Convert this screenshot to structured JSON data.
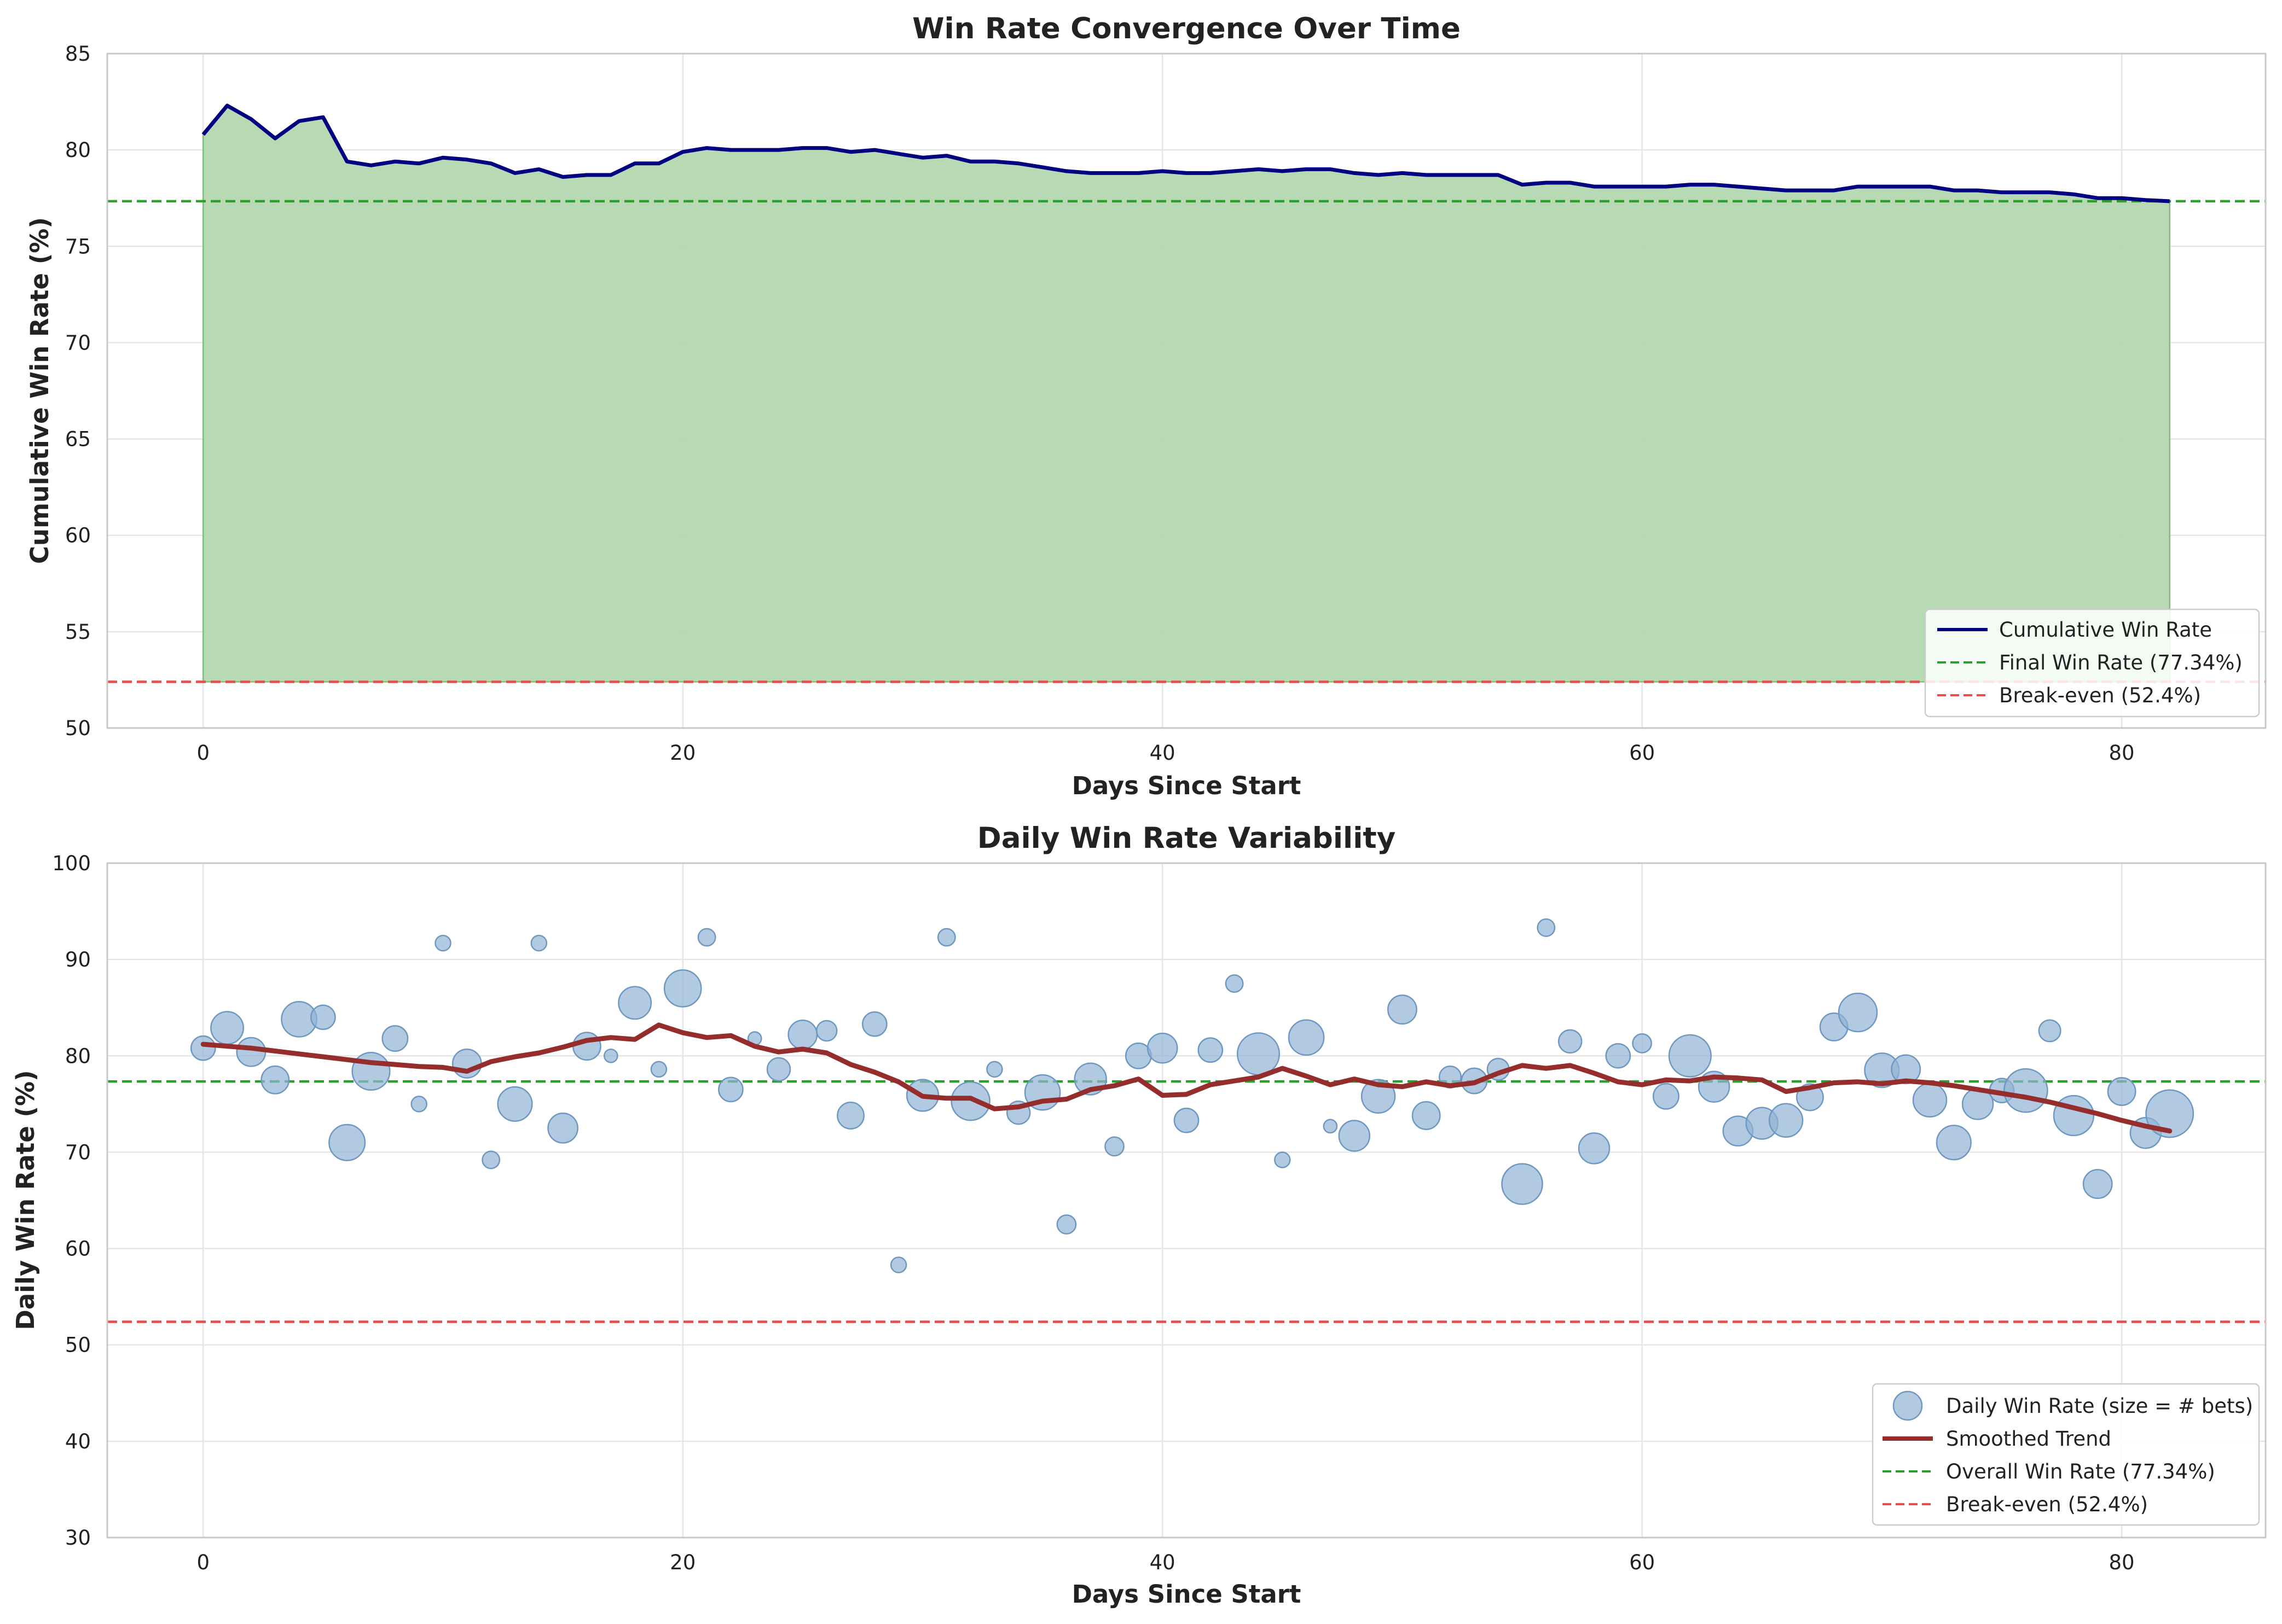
{
  "colors": {
    "cumulative_line": "#000080",
    "fill": "#b3d8b0",
    "fill_edge": "#7fbf7b",
    "final_line": "#2ca02c",
    "breakeven_line": "#e84c4c",
    "scatter": "#92b4d4",
    "scatter_edge": "#6f98c0",
    "trend": "#962d2d"
  },
  "chart_data": [
    {
      "type": "area",
      "title": "Win Rate Convergence Over Time",
      "xlabel": "Days Since Start",
      "ylabel": "Cumulative Win Rate (%)",
      "xlim": [
        -4,
        86
      ],
      "ylim": [
        50,
        85
      ],
      "xticks": [
        0,
        20,
        40,
        60,
        80
      ],
      "yticks": [
        50,
        55,
        60,
        65,
        70,
        75,
        80,
        85
      ],
      "grid": true,
      "legend_position": "lower-right",
      "legend": [
        "Cumulative Win Rate",
        "Final Win Rate (77.34%)",
        "Break-even (52.4%)"
      ],
      "series": [
        {
          "name": "Cumulative Win Rate",
          "x": [
            0,
            1,
            2,
            3,
            4,
            5,
            6,
            7,
            8,
            9,
            10,
            11,
            12,
            13,
            14,
            15,
            16,
            17,
            18,
            19,
            20,
            21,
            22,
            23,
            24,
            25,
            26,
            27,
            28,
            29,
            30,
            31,
            32,
            33,
            34,
            35,
            36,
            37,
            38,
            39,
            40,
            41,
            42,
            43,
            44,
            45,
            46,
            47,
            48,
            49,
            50,
            51,
            52,
            53,
            54,
            55,
            56,
            57,
            58,
            59,
            60,
            61,
            62,
            63,
            64,
            65,
            66,
            67,
            68,
            69,
            70,
            71,
            72,
            73,
            74,
            75,
            76,
            77,
            78,
            79,
            80,
            81,
            82
          ],
          "y": [
            80.8,
            82.3,
            81.6,
            80.6,
            81.5,
            81.7,
            79.4,
            79.2,
            79.4,
            79.3,
            79.6,
            79.5,
            79.3,
            78.8,
            79.0,
            78.6,
            78.7,
            78.7,
            79.3,
            79.3,
            79.9,
            80.1,
            80.0,
            80.0,
            80.0,
            80.1,
            80.1,
            79.9,
            80.0,
            79.8,
            79.6,
            79.7,
            79.4,
            79.4,
            79.3,
            79.1,
            78.9,
            78.8,
            78.8,
            78.8,
            78.9,
            78.8,
            78.8,
            78.9,
            79.0,
            78.9,
            79.0,
            79.0,
            78.8,
            78.7,
            78.8,
            78.7,
            78.7,
            78.7,
            78.7,
            78.2,
            78.3,
            78.3,
            78.1,
            78.1,
            78.1,
            78.1,
            78.2,
            78.2,
            78.1,
            78.0,
            77.9,
            77.9,
            77.9,
            78.1,
            78.1,
            78.1,
            78.1,
            77.9,
            77.9,
            77.8,
            77.8,
            77.8,
            77.7,
            77.5,
            77.5,
            77.4,
            77.34
          ]
        }
      ],
      "reference_lines": [
        {
          "name": "Final Win Rate (77.34%)",
          "y": 77.34
        },
        {
          "name": "Break-even (52.4%)",
          "y": 52.4
        }
      ]
    },
    {
      "type": "scatter",
      "title": "Daily Win Rate Variability",
      "xlabel": "Days Since Start",
      "ylabel": "Daily Win Rate (%)",
      "xlim": [
        -4,
        86
      ],
      "ylim": [
        30,
        100
      ],
      "xticks": [
        0,
        20,
        40,
        60,
        80
      ],
      "yticks": [
        30,
        40,
        50,
        60,
        70,
        80,
        90,
        100
      ],
      "grid": true,
      "legend_position": "lower-right",
      "legend": [
        "Daily Win Rate (size = # bets)",
        "Smoothed Trend",
        "Overall Win Rate (77.34%)",
        "Break-even (52.4%)"
      ],
      "points": [
        {
          "x": 0,
          "y": 80.8,
          "n": 10
        },
        {
          "x": 1,
          "y": 82.9,
          "n": 18
        },
        {
          "x": 2,
          "y": 80.4,
          "n": 14
        },
        {
          "x": 3,
          "y": 77.5,
          "n": 13
        },
        {
          "x": 4,
          "y": 83.8,
          "n": 21
        },
        {
          "x": 5,
          "y": 84.0,
          "n": 10
        },
        {
          "x": 6,
          "y": 71.0,
          "n": 22
        },
        {
          "x": 7,
          "y": 78.4,
          "n": 24
        },
        {
          "x": 8,
          "y": 81.8,
          "n": 11
        },
        {
          "x": 9,
          "y": 75.0,
          "n": 4
        },
        {
          "x": 10,
          "y": 91.7,
          "n": 4
        },
        {
          "x": 11,
          "y": 79.2,
          "n": 14
        },
        {
          "x": 12,
          "y": 69.2,
          "n": 5
        },
        {
          "x": 13,
          "y": 75.0,
          "n": 20
        },
        {
          "x": 14,
          "y": 91.7,
          "n": 4
        },
        {
          "x": 15,
          "y": 72.5,
          "n": 15
        },
        {
          "x": 16,
          "y": 81.0,
          "n": 13
        },
        {
          "x": 17,
          "y": 80.0,
          "n": 3
        },
        {
          "x": 18,
          "y": 85.5,
          "n": 18
        },
        {
          "x": 19,
          "y": 78.6,
          "n": 4
        },
        {
          "x": 20,
          "y": 87.0,
          "n": 23
        },
        {
          "x": 21,
          "y": 92.3,
          "n": 5
        },
        {
          "x": 22,
          "y": 76.5,
          "n": 10
        },
        {
          "x": 23,
          "y": 81.8,
          "n": 3
        },
        {
          "x": 24,
          "y": 78.6,
          "n": 9
        },
        {
          "x": 25,
          "y": 82.2,
          "n": 14
        },
        {
          "x": 26,
          "y": 82.6,
          "n": 7
        },
        {
          "x": 27,
          "y": 73.8,
          "n": 12
        },
        {
          "x": 28,
          "y": 83.3,
          "n": 10
        },
        {
          "x": 29,
          "y": 58.3,
          "n": 4
        },
        {
          "x": 30,
          "y": 75.9,
          "n": 17
        },
        {
          "x": 31,
          "y": 92.3,
          "n": 5
        },
        {
          "x": 32,
          "y": 75.3,
          "n": 25
        },
        {
          "x": 33,
          "y": 78.6,
          "n": 4
        },
        {
          "x": 34,
          "y": 74.1,
          "n": 9
        },
        {
          "x": 35,
          "y": 76.2,
          "n": 21
        },
        {
          "x": 36,
          "y": 62.5,
          "n": 6
        },
        {
          "x": 37,
          "y": 77.6,
          "n": 17
        },
        {
          "x": 38,
          "y": 70.6,
          "n": 6
        },
        {
          "x": 39,
          "y": 80.0,
          "n": 11
        },
        {
          "x": 40,
          "y": 80.8,
          "n": 15
        },
        {
          "x": 41,
          "y": 73.3,
          "n": 10
        },
        {
          "x": 42,
          "y": 80.6,
          "n": 10
        },
        {
          "x": 43,
          "y": 87.5,
          "n": 5
        },
        {
          "x": 44,
          "y": 80.2,
          "n": 30
        },
        {
          "x": 45,
          "y": 69.2,
          "n": 4
        },
        {
          "x": 46,
          "y": 81.9,
          "n": 21
        },
        {
          "x": 47,
          "y": 72.7,
          "n": 3
        },
        {
          "x": 48,
          "y": 71.7,
          "n": 16
        },
        {
          "x": 49,
          "y": 75.8,
          "n": 19
        },
        {
          "x": 50,
          "y": 84.8,
          "n": 14
        },
        {
          "x": 51,
          "y": 73.8,
          "n": 13
        },
        {
          "x": 52,
          "y": 77.8,
          "n": 8
        },
        {
          "x": 53,
          "y": 77.4,
          "n": 11
        },
        {
          "x": 54,
          "y": 78.6,
          "n": 8
        },
        {
          "x": 55,
          "y": 66.7,
          "n": 28
        },
        {
          "x": 56,
          "y": 93.3,
          "n": 5
        },
        {
          "x": 57,
          "y": 81.5,
          "n": 9
        },
        {
          "x": 58,
          "y": 70.4,
          "n": 16
        },
        {
          "x": 59,
          "y": 80.0,
          "n": 10
        },
        {
          "x": 60,
          "y": 81.3,
          "n": 6
        },
        {
          "x": 61,
          "y": 75.8,
          "n": 11
        },
        {
          "x": 62,
          "y": 80.0,
          "n": 30
        },
        {
          "x": 63,
          "y": 76.8,
          "n": 16
        },
        {
          "x": 64,
          "y": 72.2,
          "n": 15
        },
        {
          "x": 65,
          "y": 73.0,
          "n": 17
        },
        {
          "x": 66,
          "y": 73.3,
          "n": 19
        },
        {
          "x": 67,
          "y": 75.7,
          "n": 12
        },
        {
          "x": 68,
          "y": 83.0,
          "n": 13
        },
        {
          "x": 69,
          "y": 84.5,
          "n": 25
        },
        {
          "x": 70,
          "y": 78.5,
          "n": 20
        },
        {
          "x": 71,
          "y": 78.6,
          "n": 14
        },
        {
          "x": 72,
          "y": 75.4,
          "n": 19
        },
        {
          "x": 73,
          "y": 71.0,
          "n": 20
        },
        {
          "x": 74,
          "y": 75.0,
          "n": 16
        },
        {
          "x": 75,
          "y": 76.4,
          "n": 10
        },
        {
          "x": 76,
          "y": 76.4,
          "n": 32
        },
        {
          "x": 77,
          "y": 82.6,
          "n": 8
        },
        {
          "x": 78,
          "y": 73.8,
          "n": 27
        },
        {
          "x": 79,
          "y": 66.7,
          "n": 14
        },
        {
          "x": 80,
          "y": 76.3,
          "n": 13
        },
        {
          "x": 81,
          "y": 72.0,
          "n": 16
        },
        {
          "x": 82,
          "y": 74.0,
          "n": 38
        }
      ],
      "trend": {
        "name": "Smoothed Trend",
        "x": [
          0,
          1,
          2,
          3,
          4,
          5,
          6,
          7,
          8,
          9,
          10,
          11,
          12,
          13,
          14,
          15,
          16,
          17,
          18,
          19,
          20,
          21,
          22,
          23,
          24,
          25,
          26,
          27,
          28,
          29,
          30,
          31,
          32,
          33,
          34,
          35,
          36,
          37,
          38,
          39,
          40,
          41,
          42,
          43,
          44,
          45,
          46,
          47,
          48,
          49,
          50,
          51,
          52,
          53,
          54,
          55,
          56,
          57,
          58,
          59,
          60,
          61,
          62,
          63,
          64,
          65,
          66,
          67,
          68,
          69,
          70,
          71,
          72,
          73,
          74,
          75,
          76,
          77,
          78,
          79,
          80,
          81,
          82
        ],
        "y": [
          81.2,
          81.0,
          80.8,
          80.5,
          80.2,
          79.9,
          79.6,
          79.3,
          79.1,
          78.9,
          78.8,
          78.4,
          79.4,
          79.9,
          80.3,
          80.9,
          81.6,
          81.9,
          81.7,
          83.2,
          82.4,
          81.9,
          82.1,
          81.0,
          80.4,
          80.7,
          80.3,
          79.1,
          78.3,
          77.3,
          75.8,
          75.6,
          75.6,
          74.5,
          74.7,
          75.3,
          75.5,
          76.5,
          76.9,
          77.6,
          75.9,
          76.0,
          77.0,
          77.4,
          77.8,
          78.7,
          77.9,
          77.0,
          77.6,
          77.0,
          76.8,
          77.3,
          76.9,
          77.2,
          78.2,
          79.0,
          78.7,
          79.0,
          78.2,
          77.3,
          77.0,
          77.5,
          77.4,
          77.8,
          77.7,
          77.5,
          76.3,
          76.7,
          77.2,
          77.3,
          77.1,
          77.4,
          77.2,
          76.9,
          76.5,
          76.1,
          75.7,
          75.2,
          74.6,
          74.0,
          73.3,
          72.7,
          72.2
        ]
      },
      "reference_lines": [
        {
          "name": "Overall Win Rate (77.34%)",
          "y": 77.34
        },
        {
          "name": "Break-even (52.4%)",
          "y": 52.4
        }
      ]
    }
  ]
}
